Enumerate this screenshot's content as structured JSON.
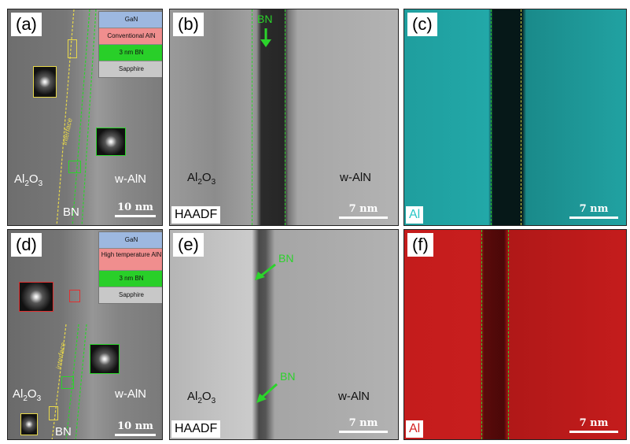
{
  "panels": {
    "a": {
      "letter": "(a)",
      "legend": [
        "GaN",
        "Conventional AlN",
        "3 nm BN",
        "Sapphire"
      ],
      "interface": "interface",
      "left_label": "Al",
      "left_sub": "2",
      "left_mid": "O",
      "left_sub2": "3",
      "right_label": "w-AlN",
      "bottom_label": "BN",
      "scale": "10 nm"
    },
    "b": {
      "letter": "(b)",
      "top_label": "BN",
      "left_label": "Al",
      "left_sub": "2",
      "left_mid": "O",
      "left_sub2": "3",
      "right_label": "w-AlN",
      "mode": "HAADF",
      "scale": "7 nm"
    },
    "c": {
      "letter": "(c)",
      "element": "Al",
      "scale": "7 nm"
    },
    "d": {
      "letter": "(d)",
      "legend": [
        "GaN",
        "High temperature AlN",
        "3 nm BN",
        "Sapphire"
      ],
      "interface": "interface",
      "left_label": "Al",
      "left_sub": "2",
      "left_mid": "O",
      "left_sub2": "3",
      "right_label": "w-AlN",
      "bottom_label": "BN",
      "scale": "10 nm"
    },
    "e": {
      "letter": "(e)",
      "bn_top": "BN",
      "bn_bottom": "BN",
      "left_label": "Al",
      "left_sub": "2",
      "left_mid": "O",
      "left_sub2": "3",
      "right_label": "w-AlN",
      "mode": "HAADF",
      "scale": "7 nm"
    },
    "f": {
      "letter": "(f)",
      "element": "Al",
      "scale": "7 nm"
    }
  },
  "colors": {
    "gan": "#9db8e0",
    "aln": "#f08e8e",
    "bn": "#29cf29",
    "sapphire": "#c8c8c8",
    "map_c": "#27c6c6",
    "map_f": "#d42020"
  }
}
